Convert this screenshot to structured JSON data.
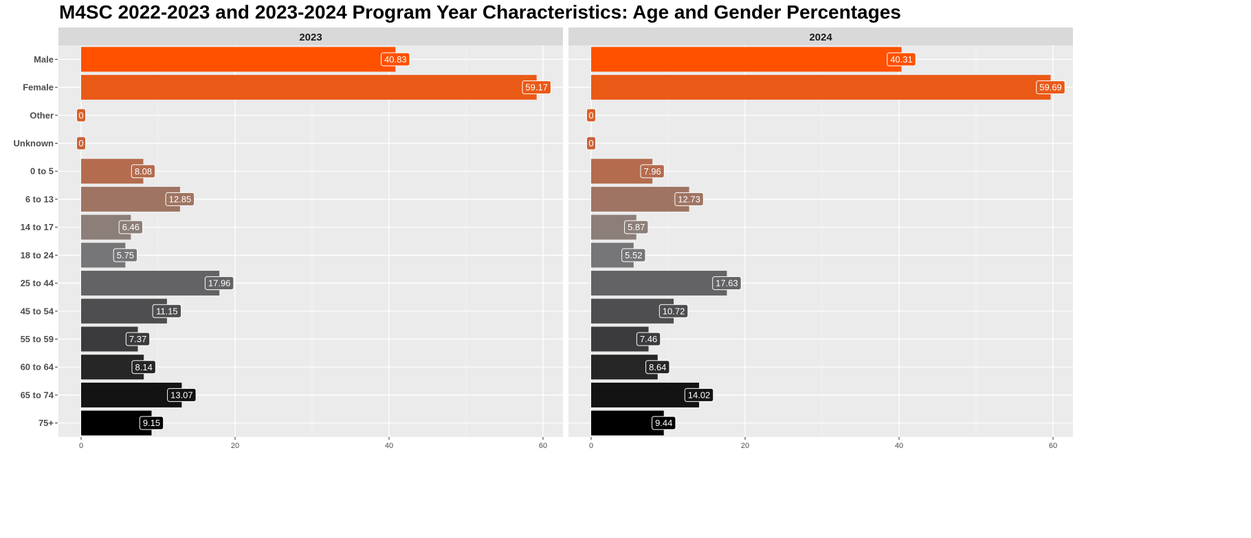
{
  "chart_data": {
    "type": "bar",
    "orientation": "horizontal",
    "title": "M4SC 2022-2023 and 2023-2024 Program Year Characteristics: Age and Gender Percentages",
    "categories": [
      "Male",
      "Female",
      "Other",
      "Unknown",
      "0 to 5",
      "6 to 13",
      "14 to 17",
      "18 to 24",
      "25 to 44",
      "45 to 54",
      "55 to 59",
      "60 to 64",
      "65 to 74",
      "75+"
    ],
    "category_colors": [
      "#FF5100",
      "#EA5A17",
      "#D9602A",
      "#C8643A",
      "#B46C4E",
      "#9F7462",
      "#8C7E78",
      "#767679",
      "#636365",
      "#4E4E50",
      "#3B3B3D",
      "#262627",
      "#131314",
      "#000000"
    ],
    "xlim": [
      0,
      62
    ],
    "xticks": [
      0,
      20,
      40,
      60
    ],
    "grid": true,
    "panels": [
      {
        "label": "2023",
        "values": [
          40.83,
          59.17,
          0,
          0,
          8.08,
          12.85,
          6.46,
          5.75,
          17.96,
          11.15,
          7.37,
          8.14,
          13.07,
          9.15
        ]
      },
      {
        "label": "2024",
        "values": [
          40.31,
          59.69,
          0,
          0,
          7.96,
          12.73,
          5.87,
          5.52,
          17.63,
          10.72,
          7.46,
          8.64,
          14.02,
          9.44
        ]
      }
    ]
  }
}
